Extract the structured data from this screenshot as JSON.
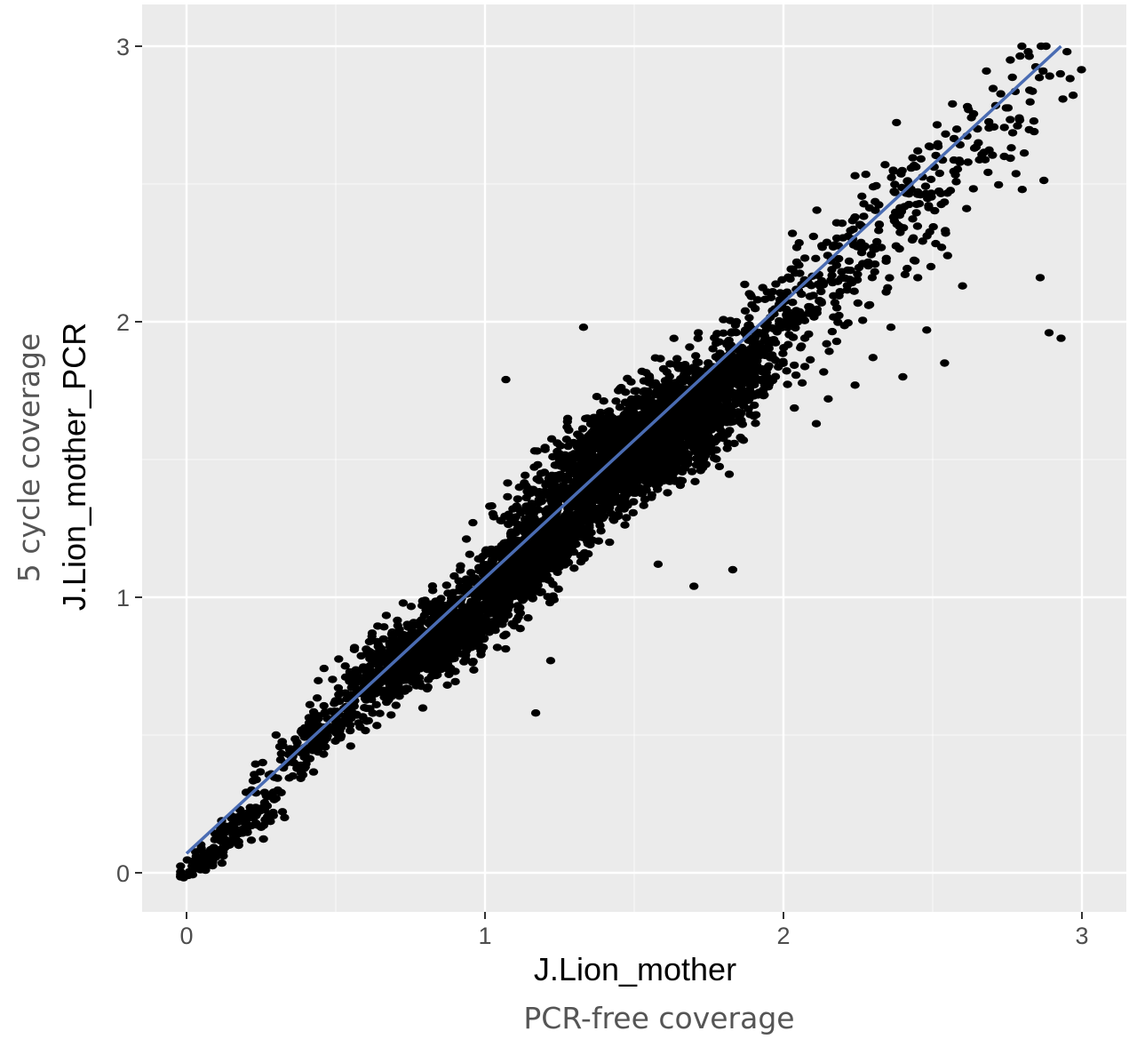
{
  "chart_data": {
    "type": "scatter",
    "x_title": "J.Lion_mother",
    "x_subtitle": "PCR-free coverage",
    "y_title": "J.Lion_mother_PCR",
    "y_subtitle": "5 cycle coverage",
    "xlim": [
      -0.15,
      3.05
    ],
    "ylim": [
      -0.15,
      3.05
    ],
    "x_ticks": [
      {
        "value": 0,
        "label": "0"
      },
      {
        "value": 1,
        "label": "1"
      },
      {
        "value": 2,
        "label": "2"
      },
      {
        "value": 3,
        "label": "3"
      }
    ],
    "y_ticks": [
      {
        "value": 0,
        "label": "0"
      },
      {
        "value": 1,
        "label": "1"
      },
      {
        "value": 2,
        "label": "2"
      },
      {
        "value": 3,
        "label": "3"
      }
    ],
    "minor_grid": [
      0.5,
      1.5,
      2.5
    ],
    "grid": true,
    "legend": "none",
    "background_color": "#ebebeb",
    "grid_color": "#ffffff",
    "point_color": "#000000",
    "fit_color": "#4a6cb3",
    "fit_line": {
      "x": [
        0.0,
        2.93
      ],
      "y": [
        0.07,
        3.0
      ]
    },
    "clusters": [
      {
        "cx": 0.05,
        "cy": 0.04,
        "sx": 0.04,
        "sy": 0.03,
        "n": 70
      },
      {
        "cx": 0.2,
        "cy": 0.19,
        "sx": 0.07,
        "sy": 0.06,
        "n": 110
      },
      {
        "cx": 0.45,
        "cy": 0.5,
        "sx": 0.09,
        "sy": 0.08,
        "n": 170
      },
      {
        "cx": 0.82,
        "cy": 0.83,
        "sx": 0.14,
        "sy": 0.1,
        "n": 900
      },
      {
        "cx": 1.15,
        "cy": 1.14,
        "sx": 0.12,
        "sy": 0.1,
        "n": 800
      },
      {
        "cx": 1.5,
        "cy": 1.55,
        "sx": 0.17,
        "sy": 0.14,
        "n": 1900
      },
      {
        "cx": 1.78,
        "cy": 1.72,
        "sx": 0.1,
        "sy": 0.14,
        "n": 450
      },
      {
        "cx": 2.05,
        "cy": 2.05,
        "sx": 0.14,
        "sy": 0.18,
        "n": 220
      },
      {
        "cx": 2.4,
        "cy": 2.4,
        "sx": 0.15,
        "sy": 0.18,
        "n": 150
      },
      {
        "cx": 2.78,
        "cy": 2.75,
        "sx": 0.12,
        "sy": 0.18,
        "n": 50
      }
    ],
    "outliers": [
      {
        "x": 2.82,
        "y": 2.98
      },
      {
        "x": 2.95,
        "y": 2.98
      },
      {
        "x": 2.87,
        "y": 2.91
      },
      {
        "x": 2.76,
        "y": 2.95
      },
      {
        "x": 2.62,
        "y": 2.77
      },
      {
        "x": 2.65,
        "y": 2.7
      },
      {
        "x": 2.74,
        "y": 2.6
      },
      {
        "x": 2.8,
        "y": 2.48
      },
      {
        "x": 2.86,
        "y": 2.16
      },
      {
        "x": 2.89,
        "y": 1.96
      },
      {
        "x": 2.93,
        "y": 1.94
      },
      {
        "x": 2.55,
        "y": 2.24
      },
      {
        "x": 2.6,
        "y": 2.13
      },
      {
        "x": 2.53,
        "y": 2.27
      },
      {
        "x": 2.45,
        "y": 2.16
      },
      {
        "x": 2.36,
        "y": 1.98
      },
      {
        "x": 2.54,
        "y": 1.85
      },
      {
        "x": 2.48,
        "y": 1.97
      },
      {
        "x": 2.4,
        "y": 1.8
      },
      {
        "x": 2.3,
        "y": 1.87
      },
      {
        "x": 2.24,
        "y": 1.77
      },
      {
        "x": 2.15,
        "y": 1.72
      },
      {
        "x": 2.11,
        "y": 1.63
      },
      {
        "x": 1.83,
        "y": 1.1
      },
      {
        "x": 1.7,
        "y": 1.04
      },
      {
        "x": 1.58,
        "y": 1.12
      },
      {
        "x": 1.17,
        "y": 0.58
      },
      {
        "x": 1.22,
        "y": 0.77
      },
      {
        "x": 0.55,
        "y": 0.46
      },
      {
        "x": 0.3,
        "y": 0.5
      },
      {
        "x": 1.07,
        "y": 1.79
      },
      {
        "x": 1.33,
        "y": 1.98
      },
      {
        "x": 2.68,
        "y": 2.91
      },
      {
        "x": 2.84,
        "y": 2.69
      },
      {
        "x": 2.24,
        "y": 2.53
      },
      {
        "x": 2.45,
        "y": 2.62
      }
    ]
  }
}
